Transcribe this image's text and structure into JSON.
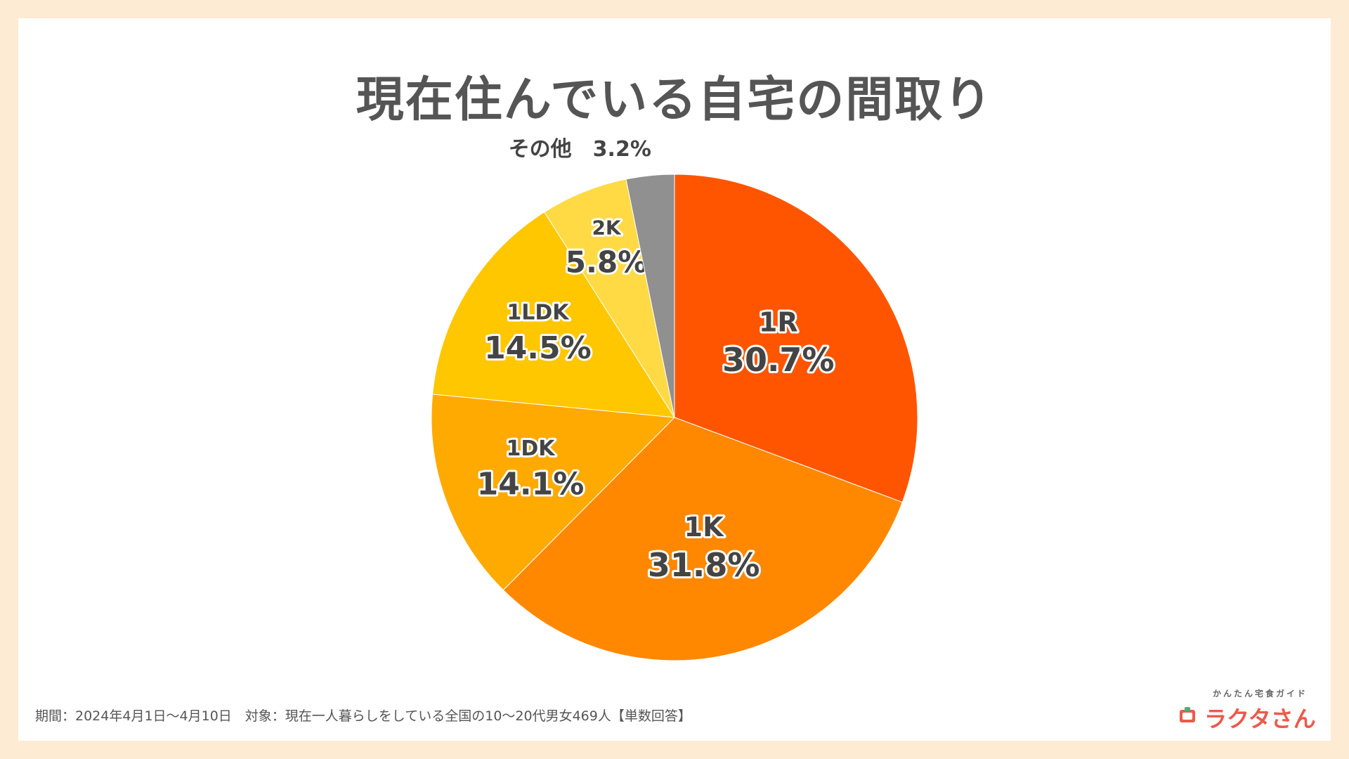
{
  "title": "現在住んでいる自宅の間取り",
  "footnote": "期間：2024年4月1日〜4月10日　対象：現在一人暮らしをしている全国の10〜20代男女469人【単数回答】",
  "logo": {
    "sub": "かんたん宅食ガイド",
    "main": "ラクタさん",
    "icon": "food-box-icon",
    "color": "#ec5a4c"
  },
  "chart_data": {
    "type": "pie",
    "title": "現在住んでいる自宅の間取り",
    "slices": [
      {
        "label": "1R",
        "value": 30.7,
        "display": "30.7%",
        "color": "#ff5500"
      },
      {
        "label": "1K",
        "value": 31.8,
        "display": "31.8%",
        "color": "#ff8800"
      },
      {
        "label": "1DK",
        "value": 14.1,
        "display": "14.1%",
        "color": "#ffaa00"
      },
      {
        "label": "1LDK",
        "value": 14.5,
        "display": "14.5%",
        "color": "#ffc700"
      },
      {
        "label": "2K",
        "value": 5.8,
        "display": "5.8%",
        "color": "#ffda44"
      },
      {
        "label": "その他",
        "value": 3.2,
        "display": "3.2%",
        "color": "#909090"
      }
    ],
    "start_angle": "12 o'clock",
    "direction": "clockwise"
  }
}
